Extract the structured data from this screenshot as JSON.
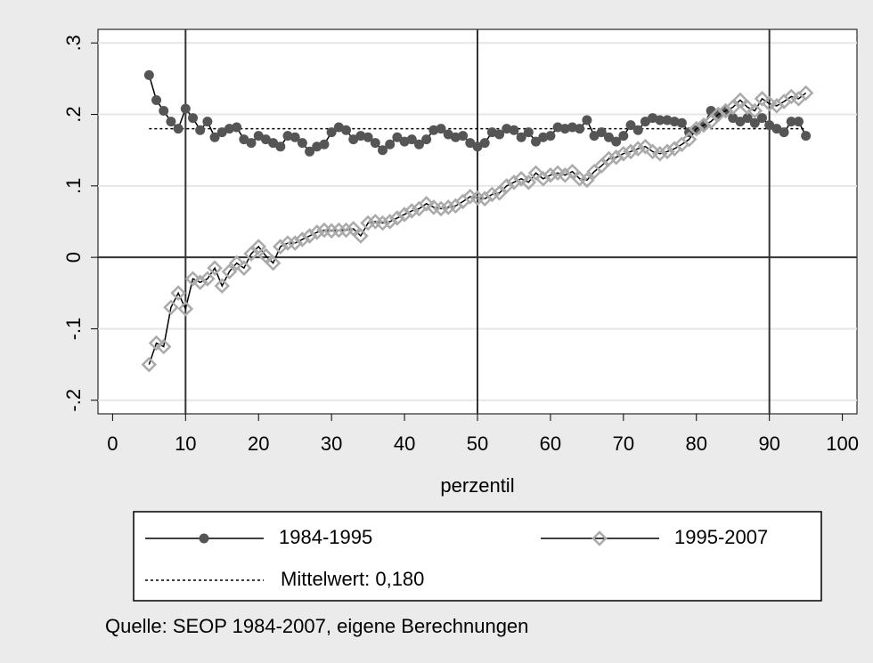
{
  "chart_data": {
    "type": "line",
    "x_label": "perzentil",
    "note": "Quelle: SEOP 1984-2007, eigene Berechnungen",
    "x": [
      5,
      6,
      7,
      8,
      9,
      10,
      11,
      12,
      13,
      14,
      15,
      16,
      17,
      18,
      19,
      20,
      21,
      22,
      23,
      24,
      25,
      26,
      27,
      28,
      29,
      30,
      31,
      32,
      33,
      34,
      35,
      36,
      37,
      38,
      39,
      40,
      41,
      42,
      43,
      44,
      45,
      46,
      47,
      48,
      49,
      50,
      51,
      52,
      53,
      54,
      55,
      56,
      57,
      58,
      59,
      60,
      61,
      62,
      63,
      64,
      65,
      66,
      67,
      68,
      69,
      70,
      71,
      72,
      73,
      74,
      75,
      76,
      77,
      78,
      79,
      80,
      81,
      82,
      83,
      84,
      85,
      86,
      87,
      88,
      89,
      90,
      91,
      92,
      93,
      94,
      95
    ],
    "series": [
      {
        "name": "1984-1995",
        "color": "#555555",
        "marker": "circle",
        "values": [
          0.255,
          0.22,
          0.205,
          0.19,
          0.18,
          0.208,
          0.195,
          0.178,
          0.19,
          0.168,
          0.175,
          0.18,
          0.182,
          0.165,
          0.16,
          0.17,
          0.165,
          0.16,
          0.155,
          0.17,
          0.168,
          0.16,
          0.148,
          0.155,
          0.158,
          0.175,
          0.182,
          0.178,
          0.165,
          0.17,
          0.168,
          0.16,
          0.15,
          0.158,
          0.168,
          0.162,
          0.165,
          0.158,
          0.165,
          0.178,
          0.18,
          0.172,
          0.168,
          0.17,
          0.16,
          0.155,
          0.16,
          0.175,
          0.172,
          0.18,
          0.178,
          0.168,
          0.175,
          0.162,
          0.168,
          0.17,
          0.182,
          0.18,
          0.182,
          0.18,
          0.192,
          0.17,
          0.175,
          0.168,
          0.162,
          0.17,
          0.185,
          0.178,
          0.19,
          0.195,
          0.192,
          0.192,
          0.19,
          0.188,
          0.175,
          0.178,
          0.185,
          0.205,
          0.2,
          0.205,
          0.195,
          0.19,
          0.195,
          0.188,
          0.195,
          0.185,
          0.18,
          0.175,
          0.19,
          0.19,
          0.17
        ]
      },
      {
        "name": "1995-2007",
        "color": "#aaaaaa",
        "marker": "diamond",
        "values": [
          -0.15,
          -0.12,
          -0.125,
          -0.07,
          -0.05,
          -0.072,
          -0.03,
          -0.035,
          -0.03,
          -0.015,
          -0.04,
          -0.02,
          -0.008,
          -0.015,
          0.005,
          0.015,
          0.002,
          -0.008,
          0.015,
          0.02,
          0.02,
          0.025,
          0.03,
          0.035,
          0.038,
          0.037,
          0.038,
          0.038,
          0.04,
          0.03,
          0.048,
          0.05,
          0.048,
          0.05,
          0.055,
          0.06,
          0.065,
          0.068,
          0.075,
          0.07,
          0.068,
          0.07,
          0.072,
          0.078,
          0.085,
          0.083,
          0.082,
          0.088,
          0.09,
          0.1,
          0.105,
          0.11,
          0.105,
          0.118,
          0.11,
          0.115,
          0.118,
          0.115,
          0.12,
          0.11,
          0.108,
          0.12,
          0.128,
          0.138,
          0.14,
          0.145,
          0.148,
          0.152,
          0.155,
          0.148,
          0.145,
          0.148,
          0.152,
          0.158,
          0.165,
          0.18,
          0.185,
          0.19,
          0.2,
          0.205,
          0.21,
          0.22,
          0.21,
          0.205,
          0.222,
          0.215,
          0.212,
          0.218,
          0.225,
          0.222,
          0.23
        ]
      }
    ],
    "mean_line": {
      "name": "Mittelwert: 0,180",
      "value": 0.18
    },
    "xlim": [
      -2,
      102
    ],
    "xticks": [
      0,
      10,
      20,
      30,
      40,
      50,
      60,
      70,
      80,
      90,
      100
    ],
    "ylim": [
      -0.219,
      0.319
    ],
    "yticks": [
      {
        "value": -0.2,
        "label": "-.2"
      },
      {
        "value": -0.1,
        "label": "-.1"
      },
      0,
      {
        "value": 0.1,
        "label": ".1"
      },
      {
        "value": 0.2,
        "label": ".2"
      },
      {
        "value": 0.3,
        "label": ".3"
      }
    ],
    "xlines": [
      10,
      50,
      90
    ],
    "ylines": [
      0
    ],
    "grid": true
  }
}
